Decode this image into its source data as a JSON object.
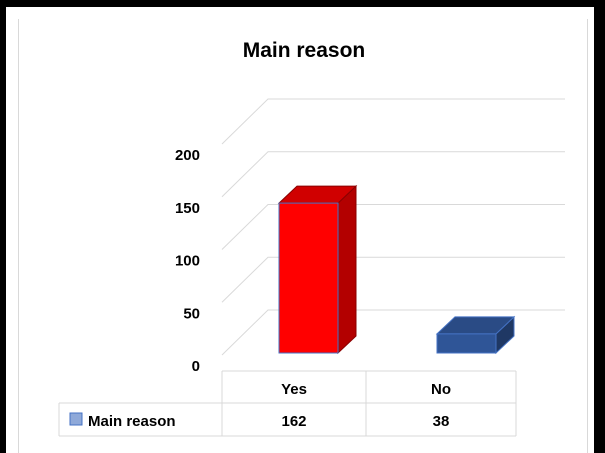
{
  "chart_data": {
    "type": "bar",
    "title": "Main reason",
    "categories": [
      "Yes",
      "No"
    ],
    "series": [
      {
        "name": "Main reason",
        "values": [
          162,
          38
        ]
      }
    ],
    "yticks": [
      "0",
      "50",
      "100",
      "150",
      "200"
    ],
    "ylim": [
      0,
      200
    ],
    "grid": true,
    "legend": "data-table",
    "colors": {
      "yes_front": "#ff0000",
      "yes_side": "#b30000",
      "yes_top": "#d00000",
      "no_front": "#2f5597",
      "no_side": "#1f3864",
      "no_top": "#2a4b85",
      "legend_key": "#8fa9d9",
      "grid": "#d9d9d9"
    }
  }
}
